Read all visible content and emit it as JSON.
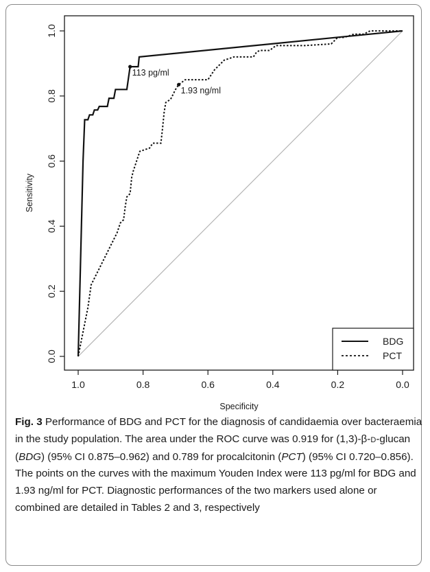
{
  "chart_data": {
    "type": "line",
    "title": "",
    "xlabel": "Specificity",
    "ylabel": "Sensitivity",
    "xlim": [
      1.0,
      0.0
    ],
    "ylim": [
      0.0,
      1.0
    ],
    "x_reversed": true,
    "xticks": [
      "1.0",
      "0.8",
      "0.6",
      "0.4",
      "0.2",
      "0.0"
    ],
    "yticks": [
      "0.0",
      "0.2",
      "0.4",
      "0.6",
      "0.8",
      "1.0"
    ],
    "grid": false,
    "legend_position": "bottom-right",
    "reference_line": {
      "from": [
        1.0,
        0.0
      ],
      "to": [
        0.0,
        1.0
      ],
      "color": "#b4b4b4"
    },
    "series": [
      {
        "name": "BDG",
        "style": "solid",
        "points": [
          [
            1.0,
            0.0
          ],
          [
            0.985,
            0.6
          ],
          [
            0.98,
            0.727
          ],
          [
            0.97,
            0.727
          ],
          [
            0.965,
            0.742
          ],
          [
            0.955,
            0.742
          ],
          [
            0.95,
            0.757
          ],
          [
            0.94,
            0.757
          ],
          [
            0.935,
            0.768
          ],
          [
            0.91,
            0.768
          ],
          [
            0.905,
            0.793
          ],
          [
            0.89,
            0.793
          ],
          [
            0.885,
            0.82
          ],
          [
            0.85,
            0.82
          ],
          [
            0.84,
            0.89
          ],
          [
            0.83,
            0.89
          ],
          [
            0.815,
            0.89
          ],
          [
            0.812,
            0.92
          ],
          [
            0.0,
            1.0
          ]
        ]
      },
      {
        "name": "PCT",
        "style": "dotted",
        "points": [
          [
            1.0,
            0.0
          ],
          [
            0.99,
            0.05
          ],
          [
            0.98,
            0.1
          ],
          [
            0.97,
            0.15
          ],
          [
            0.96,
            0.22
          ],
          [
            0.95,
            0.24
          ],
          [
            0.94,
            0.26
          ],
          [
            0.93,
            0.28
          ],
          [
            0.92,
            0.3
          ],
          [
            0.91,
            0.32
          ],
          [
            0.9,
            0.34
          ],
          [
            0.89,
            0.36
          ],
          [
            0.88,
            0.38
          ],
          [
            0.87,
            0.41
          ],
          [
            0.86,
            0.42
          ],
          [
            0.855,
            0.46
          ],
          [
            0.85,
            0.49
          ],
          [
            0.84,
            0.5
          ],
          [
            0.835,
            0.55
          ],
          [
            0.83,
            0.57
          ],
          [
            0.82,
            0.6
          ],
          [
            0.81,
            0.63
          ],
          [
            0.78,
            0.64
          ],
          [
            0.77,
            0.655
          ],
          [
            0.745,
            0.655
          ],
          [
            0.74,
            0.7
          ],
          [
            0.735,
            0.75
          ],
          [
            0.73,
            0.78
          ],
          [
            0.715,
            0.79
          ],
          [
            0.7,
            0.82
          ],
          [
            0.69,
            0.835
          ],
          [
            0.67,
            0.85
          ],
          [
            0.6,
            0.85
          ],
          [
            0.58,
            0.88
          ],
          [
            0.56,
            0.9
          ],
          [
            0.55,
            0.91
          ],
          [
            0.52,
            0.92
          ],
          [
            0.46,
            0.92
          ],
          [
            0.45,
            0.935
          ],
          [
            0.44,
            0.94
          ],
          [
            0.41,
            0.94
          ],
          [
            0.39,
            0.955
          ],
          [
            0.3,
            0.955
          ],
          [
            0.22,
            0.96
          ],
          [
            0.2,
            0.98
          ],
          [
            0.18,
            0.98
          ],
          [
            0.15,
            0.99
          ],
          [
            0.12,
            0.99
          ],
          [
            0.1,
            1.0
          ],
          [
            0.0,
            1.0
          ]
        ]
      }
    ],
    "annotations": [
      {
        "x": 0.84,
        "y": 0.89,
        "text": "113 pg/ml"
      },
      {
        "x": 0.69,
        "y": 0.835,
        "text": "1.93 ng/ml"
      }
    ]
  },
  "caption": {
    "fig_label": "Fig. 3",
    "segments": [
      {
        "t": " Performance of BDG and PCT for the diagnosis of candidaemia over bacteraemia in the study population. The area under the ROC curve was 0.919 for (1,3)-β-",
        "i": false
      },
      {
        "t": "D",
        "i": false,
        "sc": true
      },
      {
        "t": "-glucan (",
        "i": false
      },
      {
        "t": "BDG",
        "i": true
      },
      {
        "t": ") (95% CI 0.875–0.962) and 0.789 for procalcitonin (",
        "i": false
      },
      {
        "t": "PCT",
        "i": true
      },
      {
        "t": ") (95% CI 0.720–0.856). The points on the curves with the maximum Youden Index were 113 pg/ml for BDG and 1.93 ng/ml for PCT. Diagnostic performances of the two markers used alone or combined are detailed in Tables 2 and 3, respectively",
        "i": false
      }
    ]
  }
}
